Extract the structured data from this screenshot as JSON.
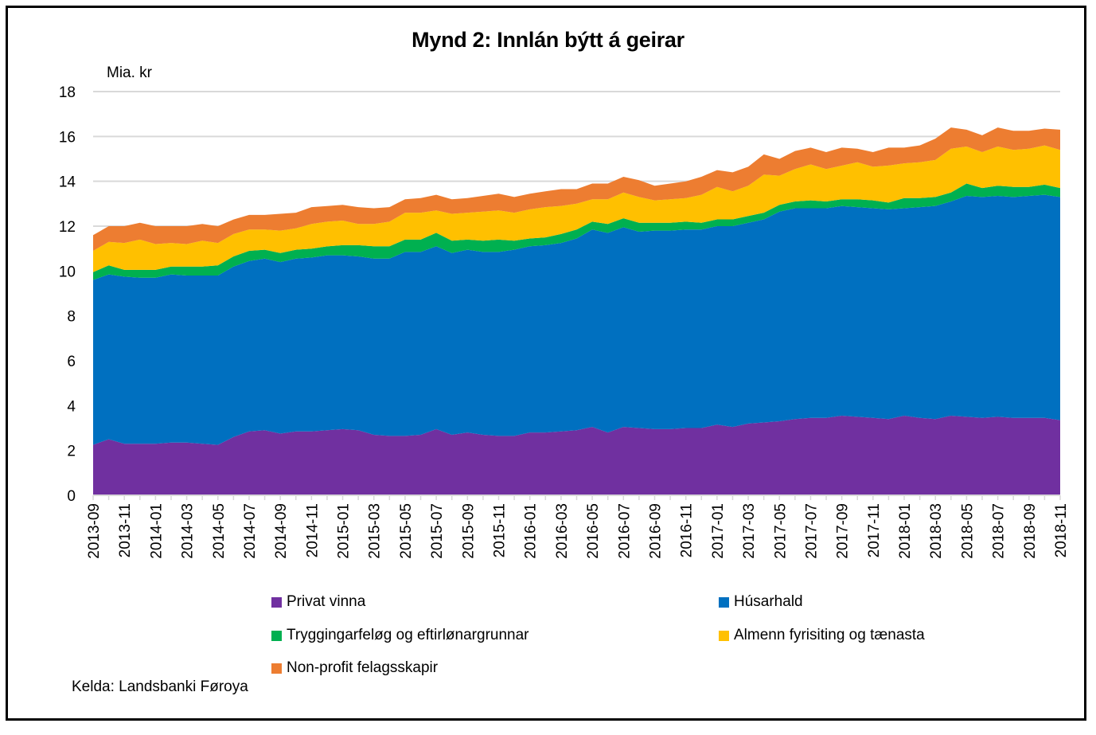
{
  "chart_data": {
    "type": "area",
    "stacked": true,
    "title": "Mynd 2: Innlán býtt á geirar",
    "ylabel": "Mia. kr",
    "xlabel": "",
    "ylim": [
      0,
      18
    ],
    "yticks": [
      0,
      2,
      4,
      6,
      8,
      10,
      12,
      14,
      16,
      18
    ],
    "grid": true,
    "legend_position": "bottom",
    "source": "Kelda: Landsbanki Føroya",
    "x": [
      "2013-09",
      "2013-10",
      "2013-11",
      "2013-12",
      "2014-01",
      "2014-02",
      "2014-03",
      "2014-04",
      "2014-05",
      "2014-06",
      "2014-07",
      "2014-08",
      "2014-09",
      "2014-10",
      "2014-11",
      "2014-12",
      "2015-01",
      "2015-02",
      "2015-03",
      "2015-04",
      "2015-05",
      "2015-06",
      "2015-07",
      "2015-08",
      "2015-09",
      "2015-10",
      "2015-11",
      "2015-12",
      "2016-01",
      "2016-02",
      "2016-03",
      "2016-04",
      "2016-05",
      "2016-06",
      "2016-07",
      "2016-08",
      "2016-09",
      "2016-10",
      "2016-11",
      "2016-12",
      "2017-01",
      "2017-02",
      "2017-03",
      "2017-04",
      "2017-05",
      "2017-06",
      "2017-07",
      "2017-08",
      "2017-09",
      "2017-10",
      "2017-11",
      "2017-12",
      "2018-01",
      "2018-02",
      "2018-03",
      "2018-04",
      "2018-05",
      "2018-06",
      "2018-07",
      "2018-08",
      "2018-09",
      "2018-10",
      "2018-11"
    ],
    "xtick_labels": [
      "2013-09",
      "2013-11",
      "2014-01",
      "2014-03",
      "2014-05",
      "2014-07",
      "2014-09",
      "2014-11",
      "2015-01",
      "2015-03",
      "2015-05",
      "2015-07",
      "2015-09",
      "2015-11",
      "2016-01",
      "2016-03",
      "2016-05",
      "2016-07",
      "2016-09",
      "2016-11",
      "2017-01",
      "2017-03",
      "2017-05",
      "2017-07",
      "2017-09",
      "2017-11",
      "2018-01",
      "2018-03",
      "2018-05",
      "2018-07",
      "2018-09",
      "2018-11"
    ],
    "series": [
      {
        "name": "Privat vinna",
        "color": "#7030A0",
        "values": [
          2.25,
          2.5,
          2.3,
          2.3,
          2.3,
          2.35,
          2.35,
          2.3,
          2.25,
          2.6,
          2.85,
          2.9,
          2.75,
          2.85,
          2.85,
          2.9,
          2.95,
          2.9,
          2.7,
          2.65,
          2.65,
          2.7,
          2.95,
          2.7,
          2.8,
          2.7,
          2.65,
          2.65,
          2.8,
          2.8,
          2.85,
          2.9,
          3.05,
          2.8,
          3.05,
          3.0,
          2.95,
          2.95,
          3.0,
          3.0,
          3.15,
          3.05,
          3.2,
          3.25,
          3.3,
          3.4,
          3.45,
          3.45,
          3.55,
          3.5,
          3.45,
          3.4,
          3.55,
          3.45,
          3.4,
          3.55,
          3.5,
          3.45,
          3.5,
          3.45,
          3.45,
          3.45,
          3.35
        ]
      },
      {
        "name": "Húsarhald",
        "color": "#0070C0",
        "values": [
          7.35,
          7.35,
          7.45,
          7.4,
          7.4,
          7.5,
          7.45,
          7.5,
          7.55,
          7.6,
          7.6,
          7.65,
          7.65,
          7.7,
          7.75,
          7.8,
          7.75,
          7.75,
          7.85,
          7.9,
          8.2,
          8.15,
          8.15,
          8.1,
          8.15,
          8.15,
          8.2,
          8.3,
          8.3,
          8.35,
          8.4,
          8.55,
          8.8,
          8.9,
          8.9,
          8.75,
          8.85,
          8.85,
          8.85,
          8.85,
          8.85,
          8.95,
          8.95,
          9.05,
          9.35,
          9.4,
          9.35,
          9.35,
          9.35,
          9.35,
          9.35,
          9.35,
          9.25,
          9.4,
          9.5,
          9.55,
          9.85,
          9.85,
          9.85,
          9.85,
          9.9,
          9.95,
          9.95
        ]
      },
      {
        "name": "Tryggingarfeløg og eftirlønargrunnar",
        "color": "#00B050",
        "values": [
          0.35,
          0.4,
          0.3,
          0.35,
          0.35,
          0.35,
          0.4,
          0.4,
          0.45,
          0.45,
          0.45,
          0.4,
          0.4,
          0.4,
          0.4,
          0.4,
          0.45,
          0.5,
          0.55,
          0.55,
          0.55,
          0.55,
          0.6,
          0.55,
          0.45,
          0.5,
          0.55,
          0.4,
          0.35,
          0.35,
          0.4,
          0.4,
          0.35,
          0.4,
          0.4,
          0.4,
          0.35,
          0.35,
          0.35,
          0.3,
          0.3,
          0.3,
          0.3,
          0.3,
          0.3,
          0.3,
          0.35,
          0.3,
          0.3,
          0.35,
          0.35,
          0.3,
          0.45,
          0.4,
          0.4,
          0.4,
          0.55,
          0.4,
          0.45,
          0.45,
          0.4,
          0.45,
          0.4
        ]
      },
      {
        "name": "Almenn fyrisiting og tænasta",
        "color": "#FFC000",
        "values": [
          0.95,
          1.05,
          1.2,
          1.35,
          1.15,
          1.05,
          1.0,
          1.15,
          1.0,
          1.0,
          0.95,
          0.9,
          1.0,
          0.95,
          1.1,
          1.1,
          1.1,
          0.95,
          1.0,
          1.1,
          1.2,
          1.2,
          1.0,
          1.2,
          1.2,
          1.3,
          1.3,
          1.25,
          1.3,
          1.35,
          1.25,
          1.15,
          1.0,
          1.1,
          1.15,
          1.15,
          1.0,
          1.05,
          1.05,
          1.25,
          1.45,
          1.25,
          1.35,
          1.7,
          1.3,
          1.45,
          1.6,
          1.45,
          1.5,
          1.65,
          1.5,
          1.65,
          1.55,
          1.6,
          1.65,
          1.95,
          1.65,
          1.6,
          1.75,
          1.65,
          1.7,
          1.75,
          1.7
        ]
      },
      {
        "name": "Non-profit felagsskapir",
        "color": "#ED7D31",
        "values": [
          0.7,
          0.7,
          0.75,
          0.75,
          0.8,
          0.75,
          0.8,
          0.75,
          0.75,
          0.65,
          0.65,
          0.65,
          0.75,
          0.7,
          0.75,
          0.7,
          0.7,
          0.75,
          0.7,
          0.65,
          0.6,
          0.65,
          0.7,
          0.65,
          0.65,
          0.7,
          0.75,
          0.7,
          0.7,
          0.7,
          0.75,
          0.65,
          0.7,
          0.7,
          0.7,
          0.75,
          0.65,
          0.7,
          0.75,
          0.8,
          0.75,
          0.85,
          0.85,
          0.9,
          0.75,
          0.8,
          0.75,
          0.75,
          0.8,
          0.6,
          0.65,
          0.8,
          0.7,
          0.75,
          0.95,
          0.95,
          0.75,
          0.75,
          0.85,
          0.85,
          0.8,
          0.75,
          0.9
        ]
      }
    ]
  }
}
